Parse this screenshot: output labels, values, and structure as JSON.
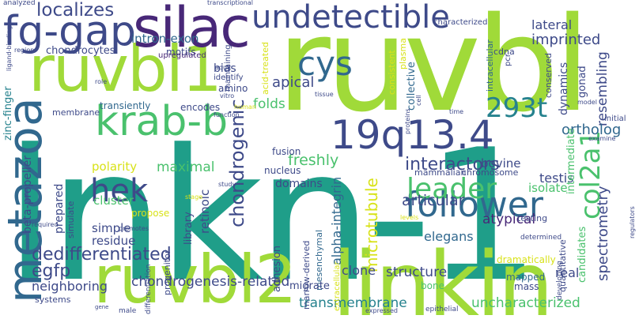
{
  "palette": {
    "background": "#ffffff",
    "teal": "#1f9e89",
    "lime": "#a0da39",
    "green": "#4ac16d",
    "lightgreen": "#73d055",
    "navy": "#31688e",
    "indigo": "#3e4a89",
    "purple": "#482878",
    "deeppurple": "#440154",
    "blue": "#26828e",
    "yellow": "#d8e219"
  },
  "words": [
    {
      "text": "lnkn-1",
      "color": "teal",
      "orientation": "horizontal"
    },
    {
      "text": "ruvbl",
      "color": "lime",
      "orientation": "horizontal"
    },
    {
      "text": "linkin",
      "color": "lime",
      "orientation": "horizontal"
    },
    {
      "text": "ruvbl2",
      "color": "lime",
      "orientation": "horizontal"
    },
    {
      "text": "ruvbl1",
      "color": "lime",
      "orientation": "horizontal"
    },
    {
      "text": "silac",
      "color": "purple",
      "orientation": "horizontal"
    },
    {
      "text": "metazoa",
      "color": "navy",
      "orientation": "vertical"
    },
    {
      "text": "fg-gap",
      "color": "indigo",
      "orientation": "horizontal"
    },
    {
      "text": "undetectible",
      "color": "indigo",
      "orientation": "horizontal"
    },
    {
      "text": "krab-b",
      "color": "green",
      "orientation": "horizontal"
    },
    {
      "text": "19q13.4",
      "color": "indigo",
      "orientation": "horizontal"
    },
    {
      "text": "cys",
      "color": "navy",
      "orientation": "horizontal"
    },
    {
      "text": "follower",
      "color": "navy",
      "orientation": "horizontal"
    },
    {
      "text": "hek",
      "color": "indigo",
      "orientation": "horizontal"
    },
    {
      "text": "col2a1",
      "color": "green",
      "orientation": "vertical"
    },
    {
      "text": "leader",
      "color": "green",
      "orientation": "horizontal"
    },
    {
      "text": "293t",
      "color": "blue",
      "orientation": "horizontal"
    },
    {
      "text": "localizes",
      "color": "indigo",
      "orientation": "horizontal"
    },
    {
      "text": "dedifferentiated",
      "color": "indigo",
      "orientation": "horizontal"
    },
    {
      "text": "interactors",
      "color": "indigo",
      "orientation": "horizontal"
    },
    {
      "text": "articular",
      "color": "indigo",
      "orientation": "horizontal"
    },
    {
      "text": "freshly",
      "color": "green",
      "orientation": "horizontal"
    },
    {
      "text": "egfp",
      "color": "indigo",
      "orientation": "horizontal"
    },
    {
      "text": "chondrogenesis-related",
      "color": "indigo",
      "orientation": "horizontal"
    },
    {
      "text": "neighboring",
      "color": "indigo",
      "orientation": "horizontal"
    },
    {
      "text": "structure",
      "color": "indigo",
      "orientation": "horizontal"
    },
    {
      "text": "chondrogenic",
      "color": "indigo",
      "orientation": "vertical"
    },
    {
      "text": "microtubule",
      "color": "yellow",
      "orientation": "vertical"
    },
    {
      "text": "spectrometry",
      "color": "indigo",
      "orientation": "vertical"
    },
    {
      "text": "uncharacterized",
      "color": "green",
      "orientation": "horizontal"
    },
    {
      "text": "transmembrane",
      "color": "blue",
      "orientation": "horizontal"
    },
    {
      "text": "imprinted",
      "color": "indigo",
      "orientation": "horizontal"
    },
    {
      "text": "lateral",
      "color": "indigo",
      "orientation": "horizontal"
    },
    {
      "text": "resembling",
      "color": "indigo",
      "orientation": "vertical"
    },
    {
      "text": "intron-exon",
      "color": "navy",
      "orientation": "horizontal"
    },
    {
      "text": "chondrocytes",
      "color": "indigo",
      "orientation": "horizontal"
    },
    {
      "text": "apical",
      "color": "indigo",
      "orientation": "horizontal"
    },
    {
      "text": "domains",
      "color": "indigo",
      "orientation": "horizontal"
    },
    {
      "text": "folds",
      "color": "green",
      "orientation": "horizontal"
    },
    {
      "text": "maximal",
      "color": "green",
      "orientation": "horizontal"
    },
    {
      "text": "polarity",
      "color": "yellow",
      "orientation": "horizontal"
    },
    {
      "text": "ortholog",
      "color": "navy",
      "orientation": "horizontal"
    },
    {
      "text": "testis",
      "color": "indigo",
      "orientation": "horizontal"
    },
    {
      "text": "isolate",
      "color": "green",
      "orientation": "horizontal"
    },
    {
      "text": "bovine",
      "color": "indigo",
      "orientation": "horizontal"
    },
    {
      "text": "atypical",
      "color": "purple",
      "orientation": "horizontal"
    },
    {
      "text": "elegans",
      "color": "navy",
      "orientation": "horizontal"
    },
    {
      "text": "real",
      "color": "indigo",
      "orientation": "horizontal"
    },
    {
      "text": "clone",
      "color": "indigo",
      "orientation": "horizontal"
    },
    {
      "text": "alpha-integrin",
      "color": "navy",
      "orientation": "vertical"
    },
    {
      "text": "cluster",
      "color": "green",
      "orientation": "horizontal"
    },
    {
      "text": "simple",
      "color": "indigo",
      "orientation": "horizontal"
    },
    {
      "text": "residue",
      "color": "indigo",
      "orientation": "horizontal"
    },
    {
      "text": "library",
      "color": "indigo",
      "orientation": "vertical"
    },
    {
      "text": "retinoic",
      "color": "indigo",
      "orientation": "vertical"
    },
    {
      "text": "beta-propeller",
      "color": "indigo",
      "orientation": "vertical"
    },
    {
      "text": "zinc-finger",
      "color": "blue",
      "orientation": "vertical"
    },
    {
      "text": "prepared",
      "color": "indigo",
      "orientation": "vertical"
    },
    {
      "text": "collective",
      "color": "navy",
      "orientation": "vertical"
    },
    {
      "text": "dynamics",
      "color": "indigo",
      "orientation": "vertical"
    },
    {
      "text": "intermediate",
      "color": "green",
      "orientation": "vertical"
    },
    {
      "text": "gonad",
      "color": "indigo",
      "orientation": "vertical"
    },
    {
      "text": "candidates",
      "color": "green",
      "orientation": "vertical"
    },
    {
      "text": "quantitative",
      "color": "indigo",
      "orientation": "vertical"
    },
    {
      "text": "acid-treated",
      "color": "yellow",
      "orientation": "vertical"
    },
    {
      "text": "adhesion",
      "color": "indigo",
      "orientation": "vertical"
    },
    {
      "text": "marrow-derived",
      "color": "indigo",
      "orientation": "vertical"
    },
    {
      "text": "mesenchymal",
      "color": "navy",
      "orientation": "vertical"
    },
    {
      "text": "bias",
      "color": "indigo",
      "orientation": "horizontal"
    },
    {
      "text": "amino",
      "color": "indigo",
      "orientation": "horizontal"
    },
    {
      "text": "motifs",
      "color": "indigo",
      "orientation": "horizontal"
    },
    {
      "text": "encodes",
      "color": "indigo",
      "orientation": "horizontal"
    },
    {
      "text": "transiently",
      "color": "navy",
      "orientation": "horizontal"
    },
    {
      "text": "membrane",
      "color": "indigo",
      "orientation": "horizontal"
    },
    {
      "text": "nucleus",
      "color": "indigo",
      "orientation": "horizontal"
    },
    {
      "text": "fusion",
      "color": "indigo",
      "orientation": "horizontal"
    },
    {
      "text": "chromosome",
      "color": "indigo",
      "orientation": "horizontal"
    },
    {
      "text": "mammalian",
      "color": "indigo",
      "orientation": "horizontal"
    },
    {
      "text": "migrate",
      "color": "indigo",
      "orientation": "horizontal"
    },
    {
      "text": "mapped",
      "color": "navy",
      "orientation": "horizontal"
    },
    {
      "text": "dramatically",
      "color": "yellow",
      "orientation": "horizontal"
    },
    {
      "text": "bone",
      "color": "green",
      "orientation": "horizontal"
    },
    {
      "text": "mass",
      "color": "indigo",
      "orientation": "horizontal"
    },
    {
      "text": "systems",
      "color": "indigo",
      "orientation": "horizontal"
    },
    {
      "text": "propose",
      "color": "yellow",
      "orientation": "horizontal"
    },
    {
      "text": "simulate",
      "color": "indigo",
      "orientation": "vertical"
    },
    {
      "text": "progenitor",
      "color": "indigo",
      "orientation": "vertical"
    },
    {
      "text": "maintaining",
      "color": "indigo",
      "orientation": "vertical"
    },
    {
      "text": "consistent",
      "color": "yellow",
      "orientation": "vertical"
    },
    {
      "text": "plasma",
      "color": "yellow",
      "orientation": "vertical"
    },
    {
      "text": "intracellular",
      "color": "navy",
      "orientation": "vertical"
    },
    {
      "text": "cdna",
      "color": "indigo",
      "orientation": "horizontal"
    },
    {
      "text": "pcr",
      "color": "indigo",
      "orientation": "vertical"
    },
    {
      "text": "conserved",
      "color": "indigo",
      "orientation": "vertical"
    },
    {
      "text": "initial",
      "color": "indigo",
      "orientation": "horizontal"
    },
    {
      "text": "testing",
      "color": "indigo",
      "orientation": "horizontal"
    },
    {
      "text": "developing",
      "color": "indigo",
      "orientation": "vertical"
    },
    {
      "text": "extracellular",
      "color": "yellow",
      "orientation": "vertical"
    },
    {
      "text": "epithelial",
      "color": "indigo",
      "orientation": "horizontal"
    },
    {
      "text": "determined",
      "color": "indigo",
      "orientation": "horizontal"
    },
    {
      "text": "differentiation",
      "color": "indigo",
      "orientation": "vertical"
    },
    {
      "text": "upregulated",
      "color": "purple",
      "orientation": "horizontal"
    },
    {
      "text": "identify",
      "color": "indigo",
      "orientation": "horizontal"
    },
    {
      "text": "characterized",
      "color": "indigo",
      "orientation": "horizontal"
    },
    {
      "text": "ligand-binding",
      "color": "indigo",
      "orientation": "vertical"
    },
    {
      "text": "analyzed",
      "color": "indigo",
      "orientation": "horizontal"
    },
    {
      "text": "transcriptional",
      "color": "indigo",
      "orientation": "horizontal"
    },
    {
      "text": "region",
      "color": "indigo",
      "orientation": "horizontal"
    },
    {
      "text": "role",
      "color": "indigo",
      "orientation": "horizontal"
    },
    {
      "text": "adult",
      "color": "indigo",
      "orientation": "horizontal"
    },
    {
      "text": "tissue",
      "color": "indigo",
      "orientation": "horizontal"
    },
    {
      "text": "vitro",
      "color": "indigo",
      "orientation": "horizontal"
    },
    {
      "text": "human",
      "color": "yellow",
      "orientation": "horizontal"
    },
    {
      "text": "function",
      "color": "indigo",
      "orientation": "horizontal"
    },
    {
      "text": "cell",
      "color": "indigo",
      "orientation": "vertical"
    },
    {
      "text": "proteins",
      "color": "indigo",
      "orientation": "vertical"
    },
    {
      "text": "model",
      "color": "indigo",
      "orientation": "horizontal"
    },
    {
      "text": "time",
      "color": "indigo",
      "orientation": "horizontal"
    },
    {
      "text": "examine",
      "color": "indigo",
      "orientation": "horizontal"
    },
    {
      "text": "study",
      "color": "indigo",
      "orientation": "horizontal"
    },
    {
      "text": "stage",
      "color": "yellow",
      "orientation": "horizontal"
    },
    {
      "text": "levels",
      "color": "yellow",
      "orientation": "horizontal"
    },
    {
      "text": "expressed",
      "color": "indigo",
      "orientation": "horizontal"
    },
    {
      "text": "required",
      "color": "indigo",
      "orientation": "horizontal"
    },
    {
      "text": "promotes",
      "color": "indigo",
      "orientation": "horizontal"
    },
    {
      "text": "gene",
      "color": "indigo",
      "orientation": "horizontal"
    },
    {
      "text": "male",
      "color": "indigo",
      "orientation": "horizontal"
    },
    {
      "text": "regulators",
      "color": "indigo",
      "orientation": "vertical"
    }
  ]
}
